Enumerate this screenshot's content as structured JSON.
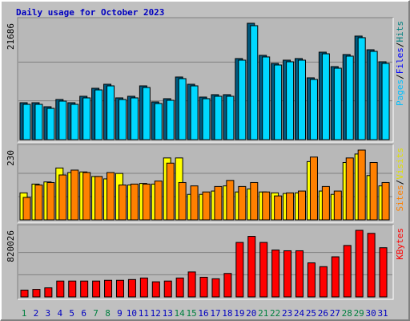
{
  "chart_data": {
    "type": "bar",
    "title": "Daily usage for October 2023",
    "categories": [
      "1",
      "2",
      "3",
      "4",
      "5",
      "6",
      "7",
      "8",
      "9",
      "10",
      "11",
      "12",
      "13",
      "14",
      "15",
      "16",
      "17",
      "18",
      "19",
      "20",
      "21",
      "22",
      "23",
      "24",
      "25",
      "26",
      "27",
      "28",
      "29",
      "30",
      "31"
    ],
    "category_colors": [
      "#008040",
      "#0000c0",
      "#0000c0",
      "#0000c0",
      "#0000c0",
      "#0000c0",
      "#008040",
      "#008040",
      "#0000c0",
      "#0000c0",
      "#0000c0",
      "#0000c0",
      "#0000c0",
      "#008040",
      "#008040",
      "#0000c0",
      "#0000c0",
      "#0000c0",
      "#0000c0",
      "#0000c0",
      "#008040",
      "#008040",
      "#0000c0",
      "#0000c0",
      "#0000c0",
      "#0000c0",
      "#0000c0",
      "#008040",
      "#008040",
      "#0000c0",
      "#0000c0"
    ],
    "grid_divisions": 3,
    "panels": [
      {
        "ylim": [
          0,
          21686
        ],
        "yticks": [
          21686
        ],
        "axis_labels": [
          {
            "text": "Pages",
            "color": "#00c0ff"
          },
          {
            "text": "/",
            "color": "#000000"
          },
          {
            "text": "Files",
            "color": "#0000ff"
          },
          {
            "text": "/",
            "color": "#000000"
          },
          {
            "text": "Hits",
            "color": "#008080"
          }
        ],
        "series": [
          {
            "name": "Files",
            "color": "#005a80",
            "values": [
              6880,
              6880,
              6130,
              7480,
              6880,
              8080,
              9570,
              10320,
              7780,
              8080,
              10020,
              7030,
              7630,
              11670,
              10320,
              7930,
              8380,
              8380,
              15110,
              21686,
              15710,
              14210,
              14810,
              15110,
              11520,
              16300,
              13610,
              15860,
              19300,
              16750,
              14510
            ]
          },
          {
            "name": "Pages",
            "color": "#00d8ff",
            "values": [
              6580,
              6580,
              5830,
              7180,
              6580,
              7780,
              9270,
              10020,
              7480,
              7780,
              9720,
              6730,
              7330,
              11370,
              10020,
              7630,
              8080,
              8080,
              14810,
              21240,
              15410,
              13910,
              14510,
              14810,
              11220,
              16000,
              13310,
              15560,
              19000,
              16450,
              14210
            ]
          }
        ]
      },
      {
        "ylim": [
          0,
          230
        ],
        "yticks": [
          230
        ],
        "axis_labels": [
          {
            "text": "Sites",
            "color": "#ff8000"
          },
          {
            "text": "/",
            "color": "#000000"
          },
          {
            "text": "Visits",
            "color": "#e0e000"
          }
        ],
        "series": [
          {
            "name": "Visits",
            "color": "#ffff00",
            "values": [
              89,
              118,
              125,
              171,
              156,
              158,
              143,
              135,
              153,
              115,
              120,
              118,
              204,
              204,
              84,
              84,
              95,
              112,
              92,
              102,
              92,
              89,
              87,
              89,
              192,
              95,
              84,
              189,
              217,
              146,
              112
            ]
          },
          {
            "name": "Sites",
            "color": "#ff8000",
            "values": [
              74,
              115,
              123,
              148,
              164,
              156,
              143,
              156,
              115,
              118,
              118,
              128,
              187,
              123,
              112,
              92,
              110,
              130,
              110,
              123,
              92,
              79,
              89,
              95,
              207,
              110,
              95,
              204,
              230,
              189,
              123
            ]
          }
        ]
      },
      {
        "ylim": [
          0,
          820026
        ],
        "yticks": [
          820026
        ],
        "axis_labels": [
          {
            "text": "KBytes",
            "color": "#ff0000"
          }
        ],
        "series": [
          {
            "name": "KBytes",
            "color": "#ff0000",
            "values": [
              83900,
              93200,
              111800,
              195700,
              195700,
              195700,
              195700,
              205000,
              205000,
              214300,
              233000,
              186400,
              195700,
              233000,
              307500,
              242300,
              223600,
              288900,
              670900,
              745400,
              670900,
              577700,
              568400,
              568400,
              419300,
              372700,
              493900,
              633600,
              820026,
              782700,
              605700
            ]
          }
        ]
      }
    ]
  }
}
